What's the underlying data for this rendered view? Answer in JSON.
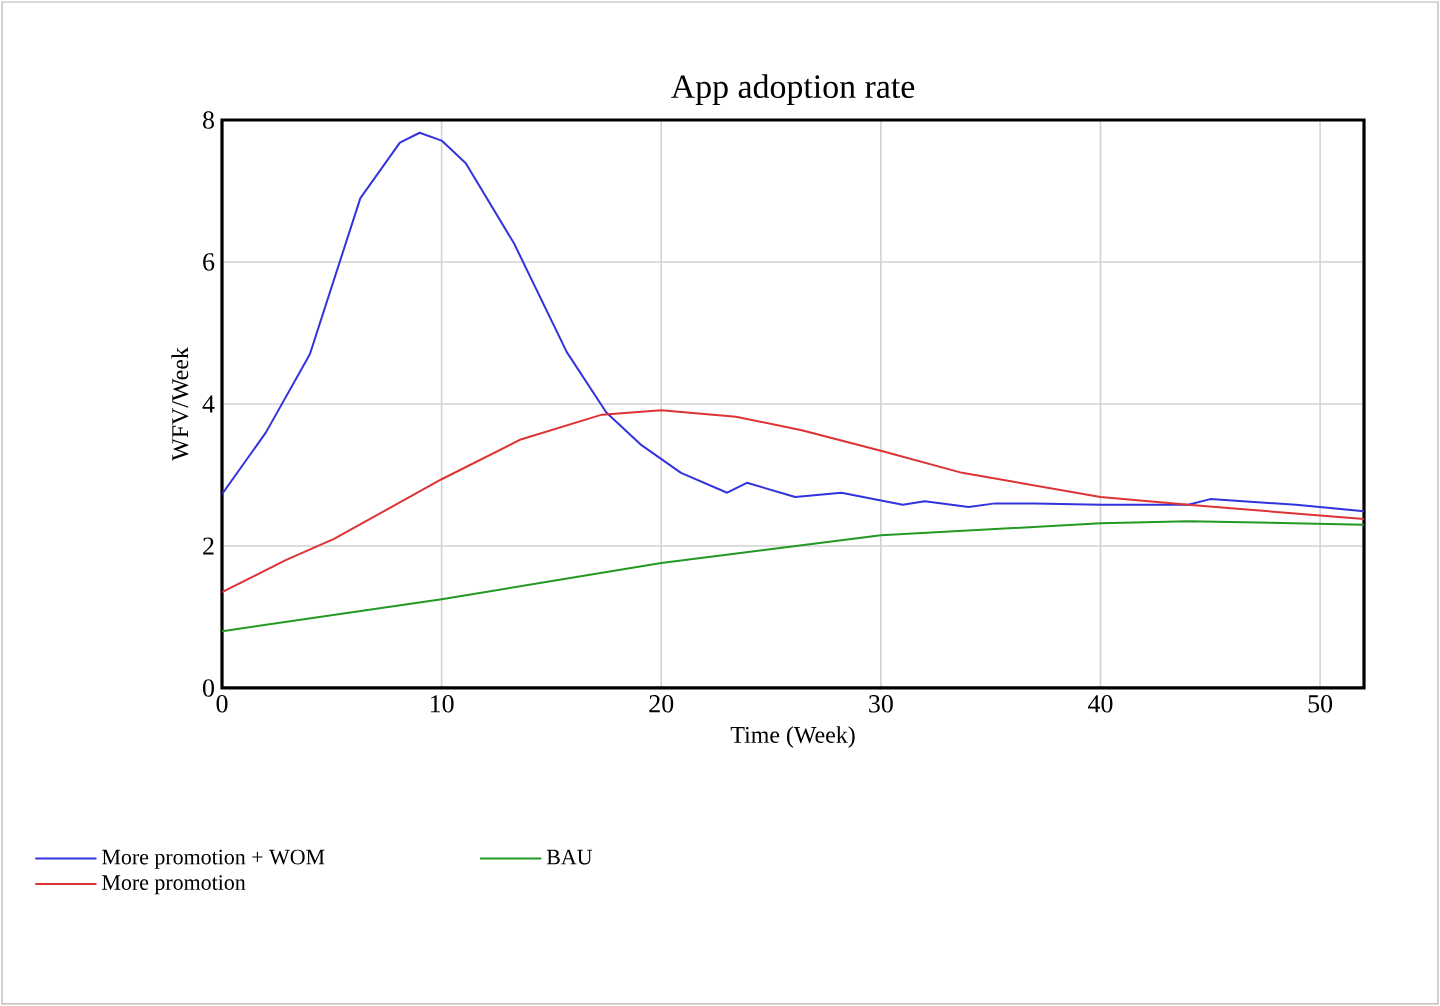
{
  "chart_data": {
    "type": "line",
    "title": "App adoption rate",
    "xlabel": "Time (Week)",
    "ylabel": "WFV/Week",
    "xlim": [
      0,
      52
    ],
    "ylim": [
      0,
      8
    ],
    "xticks": [
      0,
      10,
      20,
      30,
      40,
      50
    ],
    "yticks": [
      0,
      2,
      4,
      6,
      8
    ],
    "grid": true,
    "legend": "bottom",
    "marker": "none",
    "line_style": "solid",
    "series": [
      {
        "name": "More promotion + WOM",
        "color": "#3333dd",
        "x": [
          0,
          2,
          4,
          6.3,
          8.1,
          9,
          10,
          11.1,
          13.3,
          15.7,
          17.5,
          19.1,
          20.9,
          23,
          23.9,
          26.1,
          28.2,
          31,
          32,
          34,
          35.2,
          37,
          40,
          44,
          45,
          48.9,
          52
        ],
        "values": [
          2.73,
          3.6,
          4.7,
          6.9,
          7.68,
          7.82,
          7.71,
          7.39,
          6.26,
          4.73,
          3.88,
          3.42,
          3.03,
          2.75,
          2.89,
          2.69,
          2.75,
          2.58,
          2.63,
          2.55,
          2.6,
          2.6,
          2.58,
          2.58,
          2.66,
          2.58,
          2.49
        ]
      },
      {
        "name": "BAU",
        "color": "#229922",
        "x": [
          0,
          10,
          20,
          26.4,
          30,
          40,
          44,
          52
        ],
        "values": [
          0.8,
          1.25,
          1.76,
          2.01,
          2.15,
          2.32,
          2.35,
          2.3
        ]
      },
      {
        "name": "More promotion",
        "color": "#dd3333",
        "x": [
          0,
          2.9,
          5.1,
          10,
          13.6,
          17.3,
          20,
          23.4,
          26.4,
          30,
          33.7,
          40,
          44,
          52
        ],
        "values": [
          1.35,
          1.8,
          2.1,
          2.94,
          3.5,
          3.85,
          3.91,
          3.82,
          3.63,
          3.34,
          3.03,
          2.69,
          2.58,
          2.38
        ]
      }
    ]
  }
}
